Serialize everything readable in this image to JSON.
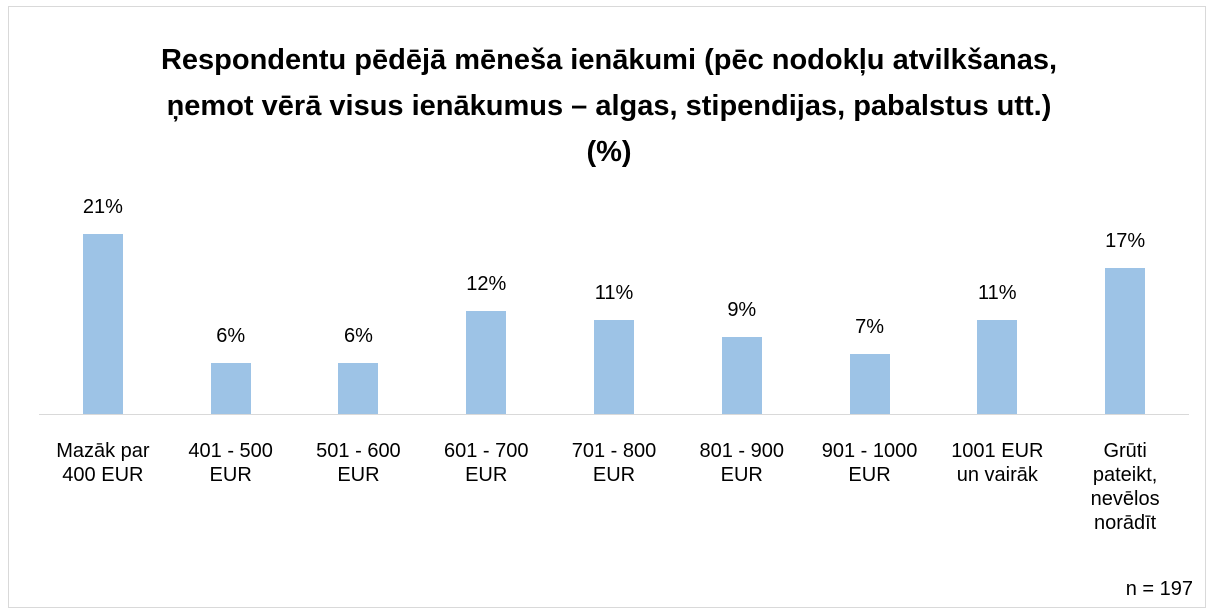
{
  "chart_data": {
    "type": "bar",
    "title": "Respondentu pēdējā mēneša ienākumi (pēc nodokļu atvilkšanas, ņemot vērā visus ienākumus – algas, stipendijas, pabalstus utt.) (%)",
    "categories": [
      "Mazāk par 400 EUR",
      "401 - 500 EUR",
      "501 - 600 EUR",
      "601 - 700 EUR",
      "701 - 800 EUR",
      "801 - 900 EUR",
      "901 - 1000 EUR",
      "1001 EUR un vairāk",
      "Grūti pateikt, nevēlos norādīt"
    ],
    "values": [
      21,
      6,
      6,
      12,
      11,
      9,
      7,
      11,
      17
    ],
    "value_labels": [
      "21%",
      "6%",
      "6%",
      "12%",
      "11%",
      "9%",
      "7%",
      "11%",
      "17%"
    ],
    "color": "#9dc3e6",
    "annotation": "n = 197"
  }
}
